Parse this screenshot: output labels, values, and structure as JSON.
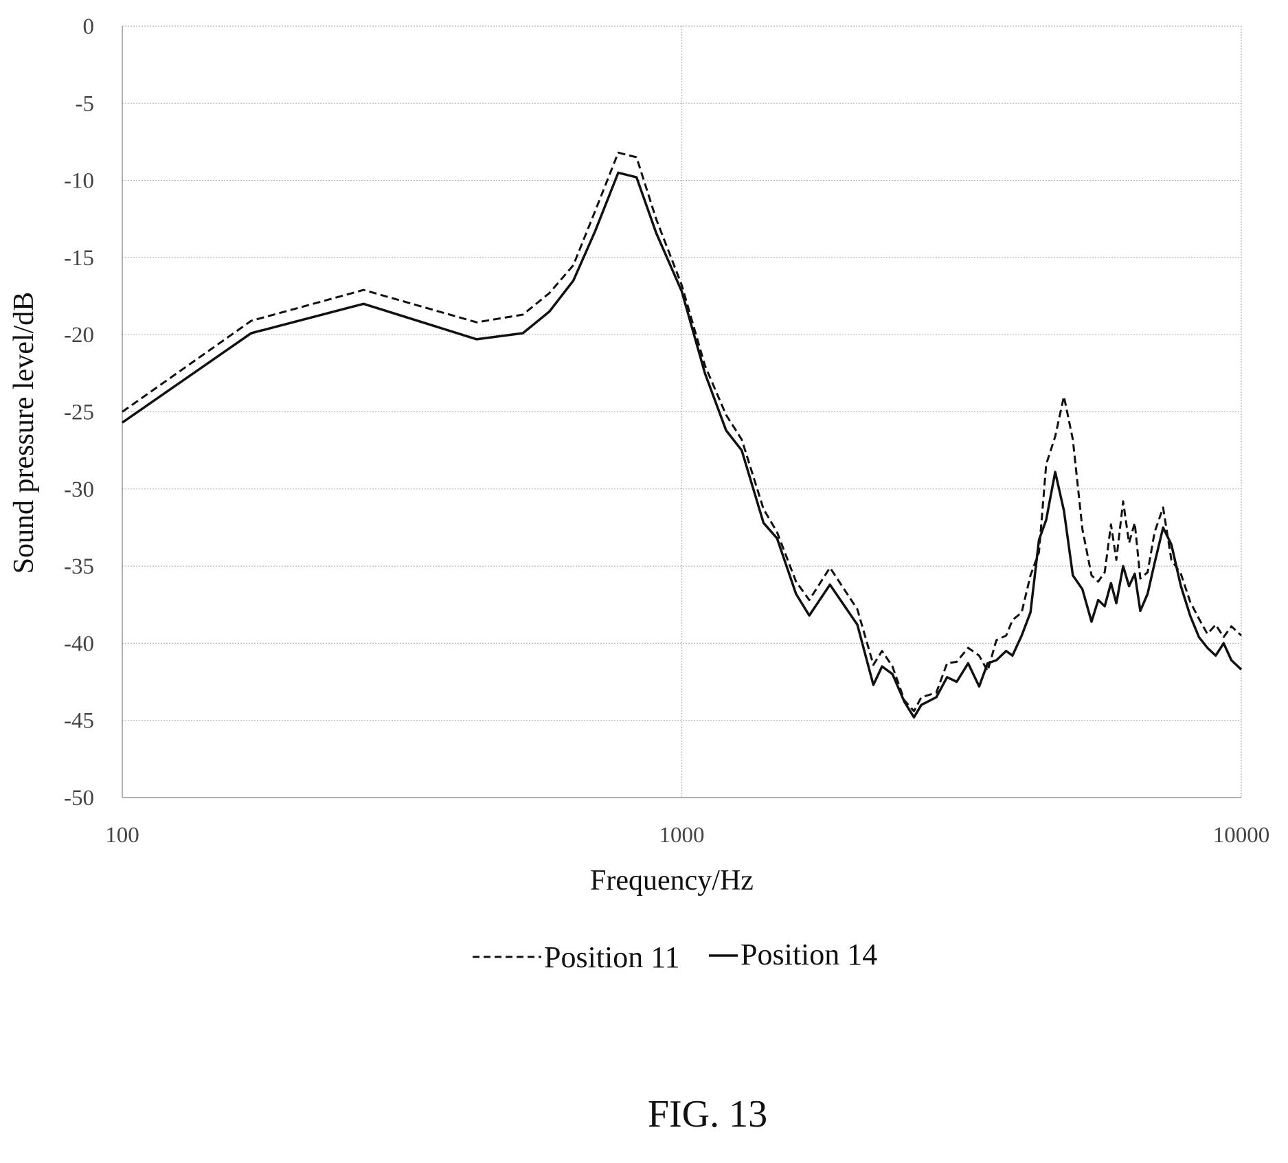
{
  "figure_label": "FIG. 13",
  "chart_data": {
    "type": "line",
    "title": "",
    "xlabel": "Frequency/Hz",
    "ylabel": "Sound pressure level/dB",
    "x_scale": "log",
    "xlim": [
      100,
      10000
    ],
    "ylim": [
      -50,
      0
    ],
    "x_ticks": [
      100,
      1000,
      10000
    ],
    "x_tick_labels": [
      "100",
      "1000",
      "10000"
    ],
    "y_ticks": [
      0,
      -5,
      -10,
      -15,
      -20,
      -25,
      -30,
      -35,
      -40,
      -45,
      -50
    ],
    "y_tick_labels": [
      "0",
      "-5",
      "-10",
      "-15",
      "-20",
      "-25",
      "-30",
      "-35",
      "-40",
      "-45",
      "-50"
    ],
    "grid": true,
    "legend_position": "bottom",
    "series": [
      {
        "name": "Position 11",
        "line_style": "dashed",
        "color": "#111111",
        "points": [
          [
            100,
            -25.0
          ],
          [
            170,
            -19.1
          ],
          [
            270,
            -17.1
          ],
          [
            430,
            -19.2
          ],
          [
            520,
            -18.7
          ],
          [
            580,
            -17.3
          ],
          [
            640,
            -15.5
          ],
          [
            700,
            -12.0
          ],
          [
            770,
            -8.2
          ],
          [
            830,
            -8.5
          ],
          [
            900,
            -12.5
          ],
          [
            1000,
            -16.8
          ],
          [
            1100,
            -22.0
          ],
          [
            1200,
            -25.2
          ],
          [
            1280,
            -26.8
          ],
          [
            1400,
            -31.3
          ],
          [
            1480,
            -32.8
          ],
          [
            1600,
            -36.0
          ],
          [
            1690,
            -37.2
          ],
          [
            1840,
            -35.1
          ],
          [
            2060,
            -37.8
          ],
          [
            2200,
            -41.4
          ],
          [
            2280,
            -40.5
          ],
          [
            2380,
            -41.5
          ],
          [
            2500,
            -43.7
          ],
          [
            2600,
            -44.4
          ],
          [
            2680,
            -43.5
          ],
          [
            2850,
            -43.2
          ],
          [
            2980,
            -41.3
          ],
          [
            3100,
            -41.2
          ],
          [
            3250,
            -40.3
          ],
          [
            3400,
            -40.8
          ],
          [
            3520,
            -41.8
          ],
          [
            3650,
            -39.8
          ],
          [
            3800,
            -39.5
          ],
          [
            3900,
            -38.5
          ],
          [
            4050,
            -38.0
          ],
          [
            4200,
            -35.6
          ],
          [
            4350,
            -34.1
          ],
          [
            4480,
            -28.4
          ],
          [
            4650,
            -26.6
          ],
          [
            4820,
            -24.0
          ],
          [
            5000,
            -26.8
          ],
          [
            5200,
            -32.6
          ],
          [
            5400,
            -35.6
          ],
          [
            5550,
            -36.0
          ],
          [
            5700,
            -35.4
          ],
          [
            5850,
            -32.3
          ],
          [
            5980,
            -34.6
          ],
          [
            6150,
            -30.8
          ],
          [
            6300,
            -33.5
          ],
          [
            6450,
            -32.2
          ],
          [
            6600,
            -35.8
          ],
          [
            6800,
            -35.4
          ],
          [
            7000,
            -32.8
          ],
          [
            7250,
            -31.2
          ],
          [
            7500,
            -34.6
          ],
          [
            7800,
            -35.5
          ],
          [
            8100,
            -37.3
          ],
          [
            8400,
            -38.4
          ],
          [
            8700,
            -39.4
          ],
          [
            9000,
            -38.8
          ],
          [
            9300,
            -39.6
          ],
          [
            9600,
            -38.9
          ],
          [
            10000,
            -39.5
          ]
        ]
      },
      {
        "name": "Position 14",
        "line_style": "solid",
        "color": "#111111",
        "points": [
          [
            100,
            -25.7
          ],
          [
            170,
            -19.9
          ],
          [
            270,
            -18.0
          ],
          [
            430,
            -20.3
          ],
          [
            520,
            -19.9
          ],
          [
            580,
            -18.5
          ],
          [
            640,
            -16.5
          ],
          [
            700,
            -13.3
          ],
          [
            770,
            -9.5
          ],
          [
            830,
            -9.8
          ],
          [
            900,
            -13.4
          ],
          [
            1000,
            -17.2
          ],
          [
            1100,
            -22.5
          ],
          [
            1200,
            -26.2
          ],
          [
            1280,
            -27.5
          ],
          [
            1400,
            -32.2
          ],
          [
            1480,
            -33.2
          ],
          [
            1600,
            -36.8
          ],
          [
            1690,
            -38.2
          ],
          [
            1840,
            -36.2
          ],
          [
            2060,
            -38.8
          ],
          [
            2200,
            -42.7
          ],
          [
            2280,
            -41.5
          ],
          [
            2380,
            -42.0
          ],
          [
            2500,
            -43.8
          ],
          [
            2600,
            -44.8
          ],
          [
            2680,
            -44.0
          ],
          [
            2850,
            -43.5
          ],
          [
            2980,
            -42.2
          ],
          [
            3100,
            -42.5
          ],
          [
            3250,
            -41.3
          ],
          [
            3400,
            -42.8
          ],
          [
            3520,
            -41.3
          ],
          [
            3650,
            -41.1
          ],
          [
            3800,
            -40.5
          ],
          [
            3900,
            -40.8
          ],
          [
            4050,
            -39.5
          ],
          [
            4200,
            -38.0
          ],
          [
            4350,
            -33.3
          ],
          [
            4480,
            -32.0
          ],
          [
            4650,
            -28.9
          ],
          [
            4820,
            -31.4
          ],
          [
            5000,
            -35.6
          ],
          [
            5200,
            -36.5
          ],
          [
            5400,
            -38.6
          ],
          [
            5550,
            -37.2
          ],
          [
            5700,
            -37.6
          ],
          [
            5850,
            -36.1
          ],
          [
            5980,
            -37.4
          ],
          [
            6150,
            -35.0
          ],
          [
            6300,
            -36.3
          ],
          [
            6450,
            -35.5
          ],
          [
            6600,
            -37.9
          ],
          [
            6800,
            -36.8
          ],
          [
            7000,
            -34.8
          ],
          [
            7250,
            -32.5
          ],
          [
            7500,
            -33.6
          ],
          [
            7800,
            -36.3
          ],
          [
            8100,
            -38.2
          ],
          [
            8400,
            -39.6
          ],
          [
            8700,
            -40.3
          ],
          [
            9000,
            -40.8
          ],
          [
            9300,
            -40.0
          ],
          [
            9600,
            -41.1
          ],
          [
            10000,
            -41.7
          ]
        ]
      }
    ]
  }
}
